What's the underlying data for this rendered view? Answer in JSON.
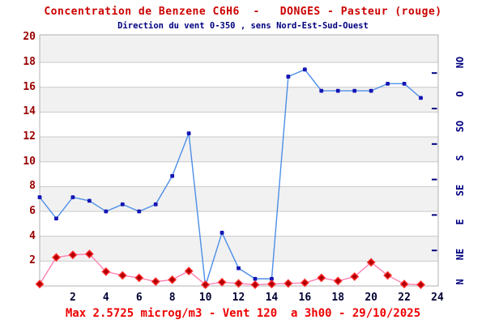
{
  "header": {
    "title": "Concentration de Benzene C6H6  -   DONGES - Pasteur (rouge)",
    "subtitle": "Direction du vent 0-350 , sens Nord-Est-Sud-Ouest"
  },
  "footer": {
    "caption": "Max 2.5725 microg/m3 - Vent 120  a 3h00 - 29/10/2025"
  },
  "colors": {
    "title": "#cc0000",
    "subtitle": "#000080",
    "caption": "#ee0000",
    "left_axis_labels": "#990000",
    "x_axis_labels": "#000033",
    "right_axis_labels": "#000080",
    "wind_line": "#4d8ee8",
    "wind_marker": "#1515b5",
    "benzene_line": "#ff7fb2",
    "benzene_marker_fill": "#b00000",
    "benzene_marker_stroke": "#ff2a2a",
    "band_fill": "#f1f1f1",
    "grid_line": "#c9c9c9",
    "plot_border": "#b0b0b0"
  },
  "chart_data": {
    "type": "line",
    "title": "Concentration de Benzene C6H6  -   DONGES - Pasteur (rouge)",
    "subtitle": "Direction du vent 0-350 , sens Nord-Est-Sud-Ouest",
    "x_axis": {
      "ticks": [
        2,
        4,
        6,
        8,
        10,
        12,
        14,
        16,
        18,
        20,
        22,
        24
      ],
      "range": [
        0,
        24
      ]
    },
    "y_left_axis": {
      "ticks": [
        2,
        4,
        6,
        8,
        10,
        12,
        14,
        16,
        18,
        20
      ],
      "range": [
        0,
        20.2
      ]
    },
    "y_right_axis": {
      "labels": [
        "N",
        "NE",
        "E",
        "SE",
        "S",
        "SO",
        "O",
        "NO"
      ],
      "label_degrees": [
        0,
        45,
        90,
        135,
        180,
        225,
        270,
        315
      ],
      "tick_degrees": [
        50,
        100,
        150,
        200,
        250,
        300
      ],
      "degrees_per_axis_unit": 17.5,
      "range_degrees": [
        0,
        350
      ]
    },
    "hours": [
      0,
      1,
      2,
      3,
      4,
      5,
      6,
      7,
      8,
      9,
      10,
      11,
      12,
      13,
      14,
      15,
      16,
      17,
      18,
      19,
      20,
      21,
      22,
      23
    ],
    "series": [
      {
        "name": "Direction du vent (degres)",
        "marker": "square",
        "unit": "deg",
        "values_degrees": [
          125,
          95,
          125,
          120,
          105,
          115,
          105,
          115,
          155,
          215,
          0,
          75,
          25,
          10,
          10,
          295,
          305,
          275,
          275,
          275,
          275,
          285,
          285,
          265
        ]
      },
      {
        "name": "Concentration de Benzene C6H6 (microg/m3)",
        "marker": "diamond",
        "unit": "microg/m3",
        "values": [
          0.15,
          2.3,
          2.5,
          2.5725,
          1.15,
          0.85,
          0.65,
          0.35,
          0.5,
          1.2,
          0.1,
          0.3,
          0.2,
          0.1,
          0.15,
          0.2,
          0.25,
          0.65,
          0.4,
          0.75,
          1.9,
          0.85,
          0.15,
          0.1
        ]
      }
    ],
    "grid": "horizontal-bands",
    "legend": "none"
  }
}
